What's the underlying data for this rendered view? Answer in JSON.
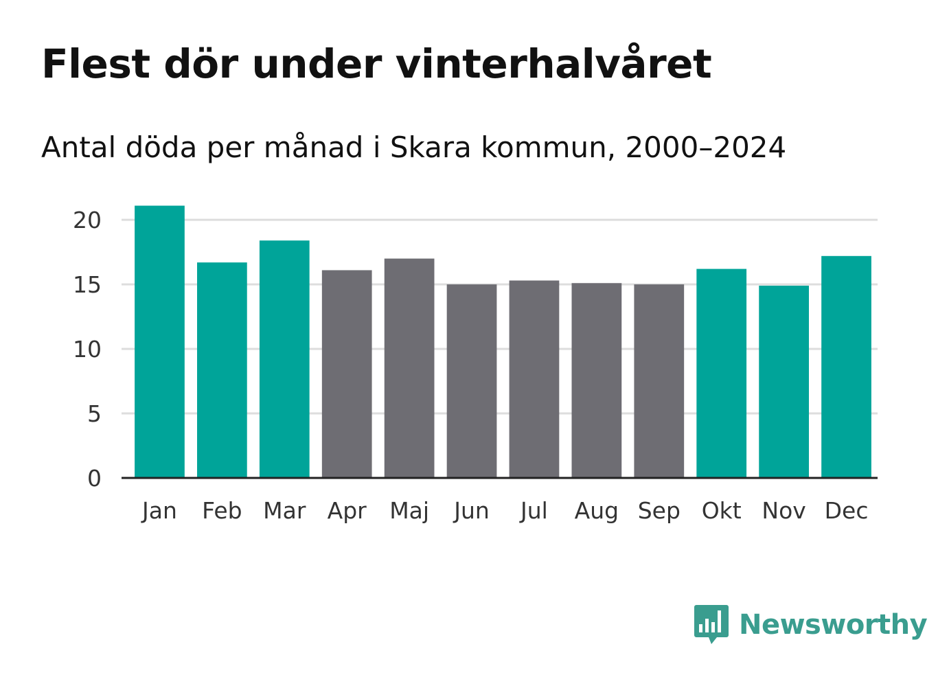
{
  "header": {
    "title": "Flest dör under vinterhalvåret",
    "subtitle": "Antal döda per månad i Skara kommun, 2000–2024"
  },
  "brand": {
    "name": "Newsworthy",
    "icon": "newsworthy-logo-icon",
    "color": "#3a9d8f"
  },
  "colors": {
    "highlight": "#00a499",
    "neutral": "#6e6d73",
    "grid": "#dddddd",
    "axis": "#222222"
  },
  "chart_data": {
    "type": "bar",
    "title": "Flest dör under vinterhalvåret",
    "subtitle": "Antal döda per månad i Skara kommun, 2000–2024",
    "xlabel": "",
    "ylabel": "",
    "categories": [
      "Jan",
      "Feb",
      "Mar",
      "Apr",
      "Maj",
      "Jun",
      "Jul",
      "Aug",
      "Sep",
      "Okt",
      "Nov",
      "Dec"
    ],
    "values": [
      21.1,
      16.7,
      18.4,
      16.1,
      17.0,
      15.0,
      15.3,
      15.1,
      15.0,
      16.2,
      14.9,
      17.2
    ],
    "highlighted": [
      true,
      true,
      true,
      false,
      false,
      false,
      false,
      false,
      false,
      true,
      true,
      true
    ],
    "ylim": [
      0,
      21.5
    ],
    "yticks": [
      0,
      5,
      10,
      15,
      20
    ],
    "grid": true
  }
}
